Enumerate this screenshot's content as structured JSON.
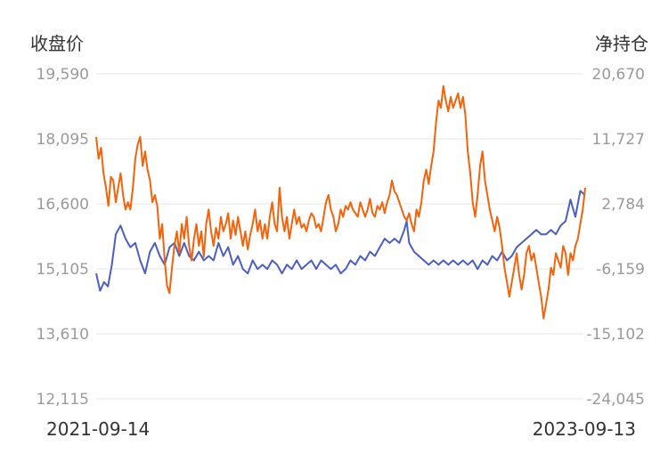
{
  "chart_data": {
    "type": "line",
    "left_axis_label": "收盘价",
    "right_axis_label": "净持仓",
    "x_start": "2021-09-14",
    "x_end": "2023-09-13",
    "left_ticks": [
      "19,590",
      "18,095",
      "16,600",
      "15,105",
      "13,610",
      "12,115"
    ],
    "right_ticks": [
      "20,670",
      "11,727",
      "2,784",
      "-6,159",
      "-15,102",
      "-24,045"
    ],
    "left_range": [
      12115,
      19590
    ],
    "right_range": [
      -24045,
      20670
    ],
    "grid": true,
    "colors": {
      "close": "#4a5fc1",
      "net_position": "#f4620a"
    },
    "series": [
      {
        "key": "close",
        "axis": "left",
        "points": [
          [
            0,
            15000
          ],
          [
            0.008,
            14600
          ],
          [
            0.016,
            14800
          ],
          [
            0.024,
            14700
          ],
          [
            0.032,
            15200
          ],
          [
            0.04,
            15900
          ],
          [
            0.05,
            16100
          ],
          [
            0.06,
            15800
          ],
          [
            0.07,
            15600
          ],
          [
            0.08,
            15700
          ],
          [
            0.09,
            15300
          ],
          [
            0.1,
            15000
          ],
          [
            0.11,
            15500
          ],
          [
            0.12,
            15700
          ],
          [
            0.13,
            15400
          ],
          [
            0.14,
            15200
          ],
          [
            0.15,
            15600
          ],
          [
            0.16,
            15700
          ],
          [
            0.17,
            15400
          ],
          [
            0.18,
            15700
          ],
          [
            0.19,
            15400
          ],
          [
            0.2,
            15300
          ],
          [
            0.21,
            15500
          ],
          [
            0.22,
            15300
          ],
          [
            0.23,
            15400
          ],
          [
            0.24,
            15300
          ],
          [
            0.25,
            15700
          ],
          [
            0.26,
            15400
          ],
          [
            0.27,
            15600
          ],
          [
            0.28,
            15200
          ],
          [
            0.29,
            15400
          ],
          [
            0.3,
            15100
          ],
          [
            0.31,
            15000
          ],
          [
            0.32,
            15300
          ],
          [
            0.33,
            15100
          ],
          [
            0.34,
            15200
          ],
          [
            0.35,
            15100
          ],
          [
            0.36,
            15300
          ],
          [
            0.37,
            15200
          ],
          [
            0.38,
            15000
          ],
          [
            0.39,
            15200
          ],
          [
            0.4,
            15100
          ],
          [
            0.41,
            15300
          ],
          [
            0.42,
            15100
          ],
          [
            0.43,
            15200
          ],
          [
            0.44,
            15300
          ],
          [
            0.45,
            15100
          ],
          [
            0.46,
            15300
          ],
          [
            0.47,
            15200
          ],
          [
            0.48,
            15100
          ],
          [
            0.49,
            15200
          ],
          [
            0.5,
            15000
          ],
          [
            0.51,
            15100
          ],
          [
            0.52,
            15300
          ],
          [
            0.53,
            15200
          ],
          [
            0.54,
            15400
          ],
          [
            0.55,
            15300
          ],
          [
            0.56,
            15500
          ],
          [
            0.57,
            15400
          ],
          [
            0.58,
            15600
          ],
          [
            0.59,
            15800
          ],
          [
            0.6,
            15700
          ],
          [
            0.61,
            15800
          ],
          [
            0.62,
            15700
          ],
          [
            0.63,
            16000
          ],
          [
            0.635,
            16200
          ],
          [
            0.64,
            15700
          ],
          [
            0.65,
            15500
          ],
          [
            0.66,
            15400
          ],
          [
            0.67,
            15300
          ],
          [
            0.68,
            15200
          ],
          [
            0.69,
            15300
          ],
          [
            0.7,
            15200
          ],
          [
            0.71,
            15300
          ],
          [
            0.72,
            15200
          ],
          [
            0.73,
            15300
          ],
          [
            0.74,
            15200
          ],
          [
            0.75,
            15300
          ],
          [
            0.76,
            15200
          ],
          [
            0.77,
            15300
          ],
          [
            0.78,
            15100
          ],
          [
            0.79,
            15300
          ],
          [
            0.8,
            15200
          ],
          [
            0.81,
            15400
          ],
          [
            0.82,
            15300
          ],
          [
            0.83,
            15500
          ],
          [
            0.84,
            15300
          ],
          [
            0.85,
            15400
          ],
          [
            0.86,
            15600
          ],
          [
            0.87,
            15700
          ],
          [
            0.88,
            15800
          ],
          [
            0.89,
            15900
          ],
          [
            0.9,
            16000
          ],
          [
            0.91,
            15900
          ],
          [
            0.92,
            15900
          ],
          [
            0.93,
            16000
          ],
          [
            0.94,
            15900
          ],
          [
            0.95,
            16100
          ],
          [
            0.96,
            16200
          ],
          [
            0.97,
            16700
          ],
          [
            0.98,
            16300
          ],
          [
            0.99,
            16900
          ],
          [
            1.0,
            16800
          ]
        ]
      },
      {
        "key": "net_position",
        "axis": "right",
        "points": [
          [
            0,
            12000
          ],
          [
            0.005,
            9000
          ],
          [
            0.01,
            10500
          ],
          [
            0.015,
            7000
          ],
          [
            0.02,
            5000
          ],
          [
            0.025,
            2500
          ],
          [
            0.03,
            6500
          ],
          [
            0.035,
            6000
          ],
          [
            0.04,
            3000
          ],
          [
            0.045,
            5000
          ],
          [
            0.05,
            7000
          ],
          [
            0.055,
            4000
          ],
          [
            0.06,
            2000
          ],
          [
            0.065,
            3000
          ],
          [
            0.07,
            2000
          ],
          [
            0.075,
            5000
          ],
          [
            0.08,
            9000
          ],
          [
            0.085,
            11000
          ],
          [
            0.09,
            12000
          ],
          [
            0.095,
            8000
          ],
          [
            0.1,
            10000
          ],
          [
            0.105,
            7500
          ],
          [
            0.11,
            6000
          ],
          [
            0.115,
            3000
          ],
          [
            0.12,
            4000
          ],
          [
            0.125,
            2500
          ],
          [
            0.13,
            -2000
          ],
          [
            0.135,
            0
          ],
          [
            0.14,
            -5000
          ],
          [
            0.145,
            -8500
          ],
          [
            0.15,
            -9500
          ],
          [
            0.155,
            -6000
          ],
          [
            0.16,
            -3000
          ],
          [
            0.165,
            -1000
          ],
          [
            0.17,
            -4000
          ],
          [
            0.175,
            0
          ],
          [
            0.18,
            -2000
          ],
          [
            0.185,
            1000
          ],
          [
            0.19,
            -3000
          ],
          [
            0.195,
            -5000
          ],
          [
            0.2,
            -2000
          ],
          [
            0.205,
            0
          ],
          [
            0.21,
            -3000
          ],
          [
            0.215,
            -1000
          ],
          [
            0.22,
            -4500
          ],
          [
            0.225,
            0
          ],
          [
            0.23,
            2000
          ],
          [
            0.235,
            -1000
          ],
          [
            0.24,
            -3000
          ],
          [
            0.245,
            -500
          ],
          [
            0.25,
            -2000
          ],
          [
            0.255,
            1000
          ],
          [
            0.26,
            -1000
          ],
          [
            0.265,
            0
          ],
          [
            0.27,
            1500
          ],
          [
            0.275,
            -2000
          ],
          [
            0.28,
            500
          ],
          [
            0.285,
            -1500
          ],
          [
            0.29,
            1000
          ],
          [
            0.295,
            -1000
          ],
          [
            0.3,
            -3000
          ],
          [
            0.305,
            -1000
          ],
          [
            0.31,
            -3500
          ],
          [
            0.315,
            -1500
          ],
          [
            0.32,
            0
          ],
          [
            0.325,
            2000
          ],
          [
            0.33,
            -1000
          ],
          [
            0.335,
            500
          ],
          [
            0.34,
            -2000
          ],
          [
            0.345,
            0
          ],
          [
            0.35,
            -2000
          ],
          [
            0.355,
            1000
          ],
          [
            0.36,
            3000
          ],
          [
            0.365,
            0
          ],
          [
            0.37,
            -1000
          ],
          [
            0.375,
            5000
          ],
          [
            0.38,
            1000
          ],
          [
            0.385,
            -1000
          ],
          [
            0.39,
            1000
          ],
          [
            0.395,
            -2000
          ],
          [
            0.4,
            0
          ],
          [
            0.405,
            2000
          ],
          [
            0.41,
            0
          ],
          [
            0.415,
            1000
          ],
          [
            0.42,
            -500
          ],
          [
            0.425,
            0
          ],
          [
            0.43,
            -1000
          ],
          [
            0.435,
            500
          ],
          [
            0.44,
            1500
          ],
          [
            0.445,
            1000
          ],
          [
            0.45,
            -500
          ],
          [
            0.455,
            0
          ],
          [
            0.46,
            -1000
          ],
          [
            0.465,
            1000
          ],
          [
            0.47,
            3000
          ],
          [
            0.475,
            4000
          ],
          [
            0.48,
            2000
          ],
          [
            0.485,
            1000
          ],
          [
            0.49,
            -1000
          ],
          [
            0.495,
            0
          ],
          [
            0.5,
            2000
          ],
          [
            0.505,
            1000
          ],
          [
            0.51,
            2500
          ],
          [
            0.515,
            2000
          ],
          [
            0.52,
            3000
          ],
          [
            0.525,
            2000
          ],
          [
            0.53,
            1500
          ],
          [
            0.535,
            1000
          ],
          [
            0.54,
            3000
          ],
          [
            0.545,
            2000
          ],
          [
            0.55,
            1000
          ],
          [
            0.555,
            2000
          ],
          [
            0.56,
            3500
          ],
          [
            0.565,
            1500
          ],
          [
            0.57,
            1000
          ],
          [
            0.575,
            2500
          ],
          [
            0.58,
            2000
          ],
          [
            0.585,
            3000
          ],
          [
            0.59,
            1500
          ],
          [
            0.595,
            3000
          ],
          [
            0.6,
            4000
          ],
          [
            0.605,
            6000
          ],
          [
            0.61,
            4500
          ],
          [
            0.615,
            4000
          ],
          [
            0.62,
            3000
          ],
          [
            0.625,
            2000
          ],
          [
            0.63,
            1000
          ],
          [
            0.635,
            500
          ],
          [
            0.64,
            1500
          ],
          [
            0.645,
            0
          ],
          [
            0.65,
            -1000
          ],
          [
            0.655,
            2000
          ],
          [
            0.66,
            1000
          ],
          [
            0.665,
            3000
          ],
          [
            0.67,
            6000
          ],
          [
            0.675,
            7500
          ],
          [
            0.68,
            5500
          ],
          [
            0.685,
            8000
          ],
          [
            0.69,
            10000
          ],
          [
            0.695,
            14000
          ],
          [
            0.7,
            17000
          ],
          [
            0.705,
            16000
          ],
          [
            0.71,
            19000
          ],
          [
            0.715,
            17000
          ],
          [
            0.72,
            15500
          ],
          [
            0.725,
            17500
          ],
          [
            0.73,
            16000
          ],
          [
            0.735,
            17000
          ],
          [
            0.74,
            18000
          ],
          [
            0.745,
            16000
          ],
          [
            0.75,
            17500
          ],
          [
            0.755,
            15000
          ],
          [
            0.76,
            10000
          ],
          [
            0.765,
            7000
          ],
          [
            0.77,
            3000
          ],
          [
            0.775,
            1000
          ],
          [
            0.78,
            4000
          ],
          [
            0.785,
            8000
          ],
          [
            0.79,
            10000
          ],
          [
            0.795,
            6000
          ],
          [
            0.8,
            4000
          ],
          [
            0.805,
            2000
          ],
          [
            0.81,
            500
          ],
          [
            0.815,
            -1000
          ],
          [
            0.82,
            1000
          ],
          [
            0.825,
            -500
          ],
          [
            0.83,
            -3000
          ],
          [
            0.835,
            -6000
          ],
          [
            0.84,
            -8000
          ],
          [
            0.845,
            -10000
          ],
          [
            0.85,
            -8000
          ],
          [
            0.855,
            -6000
          ],
          [
            0.86,
            -4000
          ],
          [
            0.865,
            -7000
          ],
          [
            0.87,
            -9000
          ],
          [
            0.875,
            -7000
          ],
          [
            0.88,
            -4000
          ],
          [
            0.885,
            -3000
          ],
          [
            0.89,
            -5000
          ],
          [
            0.895,
            -4000
          ],
          [
            0.9,
            -6000
          ],
          [
            0.905,
            -8000
          ],
          [
            0.91,
            -10000
          ],
          [
            0.915,
            -13000
          ],
          [
            0.92,
            -11000
          ],
          [
            0.925,
            -9000
          ],
          [
            0.93,
            -6000
          ],
          [
            0.935,
            -7000
          ],
          [
            0.94,
            -4000
          ],
          [
            0.945,
            -5000
          ],
          [
            0.95,
            -6000
          ],
          [
            0.955,
            -3000
          ],
          [
            0.96,
            -4000
          ],
          [
            0.965,
            -7000
          ],
          [
            0.97,
            -4000
          ],
          [
            0.975,
            -5000
          ],
          [
            0.98,
            -3000
          ],
          [
            0.985,
            -2000
          ],
          [
            0.99,
            0
          ],
          [
            0.995,
            2000
          ],
          [
            1.0,
            5000
          ]
        ]
      }
    ]
  }
}
